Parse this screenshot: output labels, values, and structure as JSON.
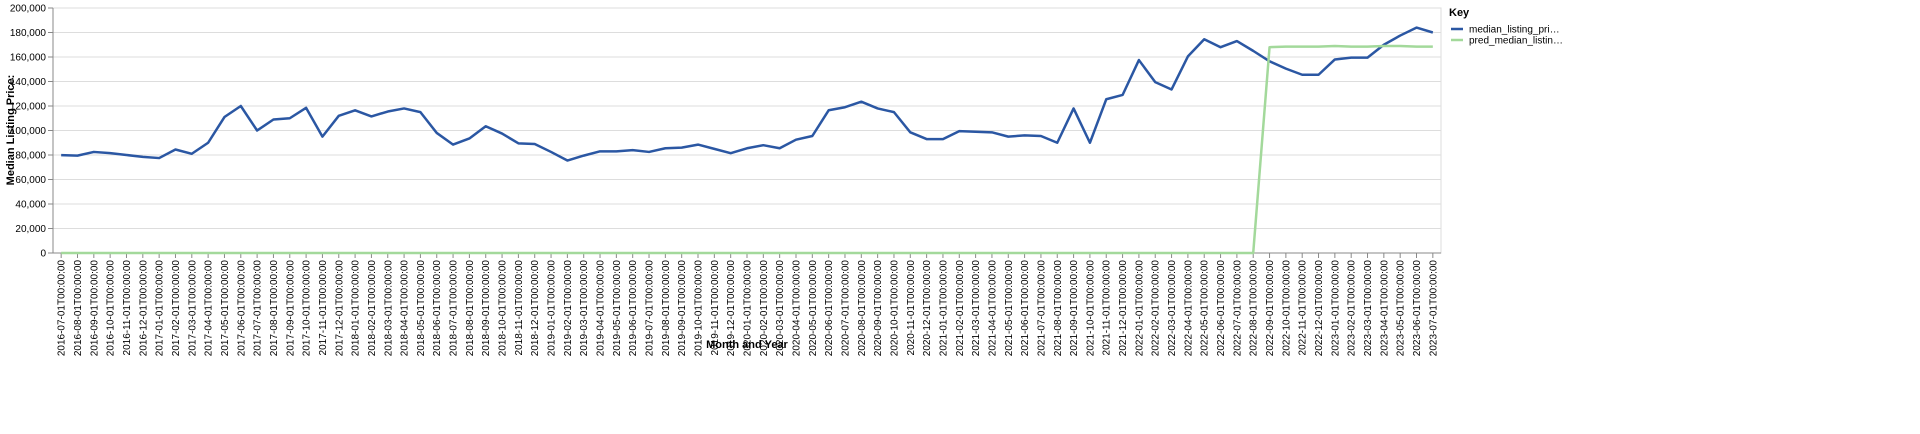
{
  "chart_data": {
    "type": "line",
    "x_label": "Month and Year",
    "y_label": "Median Listing Price:",
    "legend_title": "Key",
    "legend_position": "right",
    "grid": true,
    "ylim": [
      0,
      200000
    ],
    "yticks": [
      0,
      {
        "value": 20000,
        "label": "20,000"
      },
      {
        "value": 40000,
        "label": "40,000"
      },
      {
        "value": 60000,
        "label": "60,000"
      },
      {
        "value": 80000,
        "label": "80,000"
      },
      {
        "value": 100000,
        "label": "100,000"
      },
      {
        "value": 120000,
        "label": "120,000"
      },
      {
        "value": 140000,
        "label": "140,000"
      },
      {
        "value": 160000,
        "label": "160,000"
      },
      {
        "value": 180000,
        "label": "180,000"
      },
      {
        "value": 200000,
        "label": "200,000"
      }
    ],
    "categories": [
      "2016-07-01T00:00:00",
      "2016-08-01T00:00:00",
      "2016-09-01T00:00:00",
      "2016-10-01T00:00:00",
      "2016-11-01T00:00:00",
      "2016-12-01T00:00:00",
      "2017-01-01T00:00:00",
      "2017-02-01T00:00:00",
      "2017-03-01T00:00:00",
      "2017-04-01T00:00:00",
      "2017-05-01T00:00:00",
      "2017-06-01T00:00:00",
      "2017-07-01T00:00:00",
      "2017-08-01T00:00:00",
      "2017-09-01T00:00:00",
      "2017-10-01T00:00:00",
      "2017-11-01T00:00:00",
      "2017-12-01T00:00:00",
      "2018-01-01T00:00:00",
      "2018-02-01T00:00:00",
      "2018-03-01T00:00:00",
      "2018-04-01T00:00:00",
      "2018-05-01T00:00:00",
      "2018-06-01T00:00:00",
      "2018-07-01T00:00:00",
      "2018-08-01T00:00:00",
      "2018-09-01T00:00:00",
      "2018-10-01T00:00:00",
      "2018-11-01T00:00:00",
      "2018-12-01T00:00:00",
      "2019-01-01T00:00:00",
      "2019-02-01T00:00:00",
      "2019-03-01T00:00:00",
      "2019-04-01T00:00:00",
      "2019-05-01T00:00:00",
      "2019-06-01T00:00:00",
      "2019-07-01T00:00:00",
      "2019-08-01T00:00:00",
      "2019-09-01T00:00:00",
      "2019-10-01T00:00:00",
      "2019-11-01T00:00:00",
      "2019-12-01T00:00:00",
      "2020-01-01T00:00:00",
      "2020-02-01T00:00:00",
      "2020-03-01T00:00:00",
      "2020-04-01T00:00:00",
      "2020-05-01T00:00:00",
      "2020-06-01T00:00:00",
      "2020-07-01T00:00:00",
      "2020-08-01T00:00:00",
      "2020-09-01T00:00:00",
      "2020-10-01T00:00:00",
      "2020-11-01T00:00:00",
      "2020-12-01T00:00:00",
      "2021-01-01T00:00:00",
      "2021-02-01T00:00:00",
      "2021-03-01T00:00:00",
      "2021-04-01T00:00:00",
      "2021-05-01T00:00:00",
      "2021-06-01T00:00:00",
      "2021-07-01T00:00:00",
      "2021-08-01T00:00:00",
      "2021-09-01T00:00:00",
      "2021-10-01T00:00:00",
      "2021-11-01T00:00:00",
      "2021-12-01T00:00:00",
      "2022-01-01T00:00:00",
      "2022-02-01T00:00:00",
      "2022-03-01T00:00:00",
      "2022-04-01T00:00:00",
      "2022-05-01T00:00:00",
      "2022-06-01T00:00:00",
      "2022-07-01T00:00:00",
      "2022-08-01T00:00:00",
      "2022-09-01T00:00:00",
      "2022-10-01T00:00:00",
      "2022-11-01T00:00:00",
      "2022-12-01T00:00:00",
      "2023-01-01T00:00:00",
      "2023-02-01T00:00:00",
      "2023-03-01T00:00:00",
      "2023-04-01T00:00:00",
      "2023-05-01T00:00:00",
      "2023-06-01T00:00:00",
      "2023-07-01T00:00:00"
    ],
    "series": [
      {
        "name": "median_listing_pri…",
        "color": "#2b57a3",
        "values": [
          79900,
          79500,
          82500,
          81500,
          80000,
          78500,
          77500,
          84500,
          81000,
          90000,
          111000,
          120000,
          100000,
          109000,
          110000,
          118500,
          95000,
          112000,
          116500,
          111500,
          115500,
          118000,
          115000,
          98000,
          88500,
          93500,
          103500,
          97500,
          89500,
          89000,
          82500,
          75500,
          79500,
          83000,
          83000,
          84000,
          82500,
          85500,
          86000,
          88500,
          85000,
          81500,
          85500,
          88000,
          85500,
          92500,
          95500,
          116500,
          119000,
          123500,
          118000,
          115000,
          98500,
          93000,
          93000,
          99500,
          99000,
          98500,
          95000,
          96000,
          95500,
          90000,
          118000,
          90000,
          125500,
          129000,
          157500,
          139500,
          133500,
          160500,
          174500,
          168000,
          173000,
          165000,
          156500,
          150500,
          145500,
          145500,
          158000,
          159500,
          159500,
          170000,
          177500,
          184000,
          180000
        ]
      },
      {
        "name": "pred_median_listin…",
        "color": "#a3d99b",
        "values": [
          0,
          0,
          0,
          0,
          0,
          0,
          0,
          0,
          0,
          0,
          0,
          0,
          0,
          0,
          0,
          0,
          0,
          0,
          0,
          0,
          0,
          0,
          0,
          0,
          0,
          0,
          0,
          0,
          0,
          0,
          0,
          0,
          0,
          0,
          0,
          0,
          0,
          0,
          0,
          0,
          0,
          0,
          0,
          0,
          0,
          0,
          0,
          0,
          0,
          0,
          0,
          0,
          0,
          0,
          0,
          0,
          0,
          0,
          0,
          0,
          0,
          0,
          0,
          0,
          0,
          0,
          0,
          0,
          0,
          0,
          0,
          0,
          0,
          0,
          168000,
          168500,
          168500,
          168500,
          169000,
          168500,
          168500,
          169000,
          169000,
          168500,
          168500
        ]
      }
    ]
  }
}
